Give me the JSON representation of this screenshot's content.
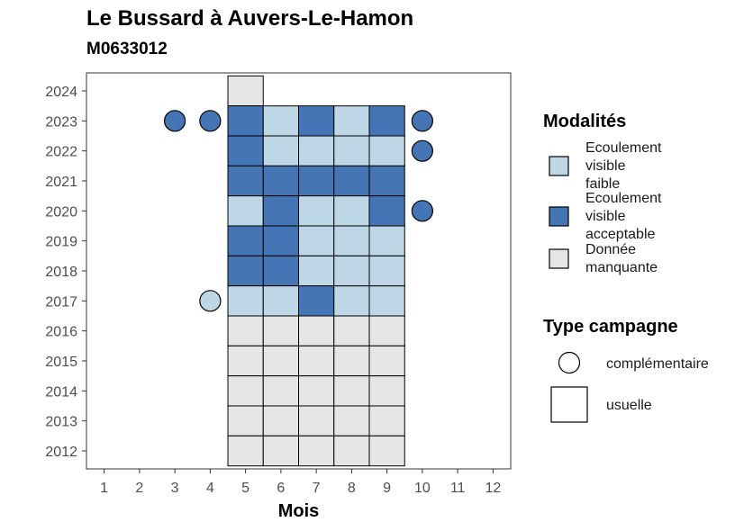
{
  "chart_data": {
    "type": "heatmap",
    "title": "Le Bussard à Auvers-Le-Hamon",
    "subtitle": "M0633012",
    "xlabel": "Mois",
    "ylabel": "",
    "x_ticks": [
      1,
      2,
      3,
      4,
      5,
      6,
      7,
      8,
      9,
      10,
      11,
      12
    ],
    "y_ticks": [
      2012,
      2013,
      2014,
      2015,
      2016,
      2017,
      2018,
      2019,
      2020,
      2021,
      2022,
      2023,
      2024
    ],
    "xlim": [
      0.5,
      12.5
    ],
    "ylim": [
      2011.4,
      2024.6
    ],
    "grid": false,
    "legend_position": "right",
    "categories": {
      "faible": {
        "label": "Ecoulement visible faible",
        "lines": [
          "Ecoulement",
          "visible",
          "faible"
        ],
        "color": "#bdd7e7"
      },
      "acceptable": {
        "label": "Ecoulement visible acceptable",
        "lines": [
          "Ecoulement",
          "visible",
          "acceptable"
        ],
        "color": "#4575b4"
      },
      "manquante": {
        "label": "Donnée manquante",
        "lines": [
          "Donnée",
          "manquante"
        ],
        "color": "#e5e5e5"
      }
    },
    "legend": {
      "modalites_title": "Modalités",
      "type_title": "Type campagne",
      "type_items": [
        {
          "shape": "circle",
          "label": "complémentaire"
        },
        {
          "shape": "square",
          "label": "usuelle"
        }
      ]
    },
    "usuelle": [
      {
        "year": 2024,
        "values": [
          "manquante",
          null,
          null,
          null,
          null
        ]
      },
      {
        "year": 2023,
        "values": [
          "acceptable",
          "faible",
          "acceptable",
          "faible",
          "acceptable"
        ]
      },
      {
        "year": 2022,
        "values": [
          "acceptable",
          "faible",
          "faible",
          "faible",
          "faible"
        ]
      },
      {
        "year": 2021,
        "values": [
          "acceptable",
          "acceptable",
          "acceptable",
          "acceptable",
          "acceptable"
        ]
      },
      {
        "year": 2020,
        "values": [
          "faible",
          "acceptable",
          "faible",
          "faible",
          "acceptable"
        ]
      },
      {
        "year": 2019,
        "values": [
          "acceptable",
          "acceptable",
          "faible",
          "faible",
          "faible"
        ]
      },
      {
        "year": 2018,
        "values": [
          "acceptable",
          "acceptable",
          "faible",
          "faible",
          "faible"
        ]
      },
      {
        "year": 2017,
        "values": [
          "faible",
          "faible",
          "acceptable",
          "faible",
          "faible"
        ]
      },
      {
        "year": 2016,
        "values": [
          "manquante",
          "manquante",
          "manquante",
          "manquante",
          "manquante"
        ]
      },
      {
        "year": 2015,
        "values": [
          "manquante",
          "manquante",
          "manquante",
          "manquante",
          "manquante"
        ]
      },
      {
        "year": 2014,
        "values": [
          "manquante",
          "manquante",
          "manquante",
          "manquante",
          "manquante"
        ]
      },
      {
        "year": 2013,
        "values": [
          "manquante",
          "manquante",
          "manquante",
          "manquante",
          "manquante"
        ]
      },
      {
        "year": 2012,
        "values": [
          "manquante",
          "manquante",
          "manquante",
          "manquante",
          "manquante"
        ]
      }
    ],
    "usuelle_months": [
      5,
      6,
      7,
      8,
      9
    ],
    "complementaire": [
      {
        "year": 2023,
        "month": 3,
        "value": "acceptable"
      },
      {
        "year": 2023,
        "month": 4,
        "value": "acceptable"
      },
      {
        "year": 2023,
        "month": 10,
        "value": "acceptable"
      },
      {
        "year": 2022,
        "month": 10,
        "value": "acceptable"
      },
      {
        "year": 2020,
        "month": 10,
        "value": "acceptable"
      },
      {
        "year": 2017,
        "month": 4,
        "value": "faible"
      }
    ]
  }
}
